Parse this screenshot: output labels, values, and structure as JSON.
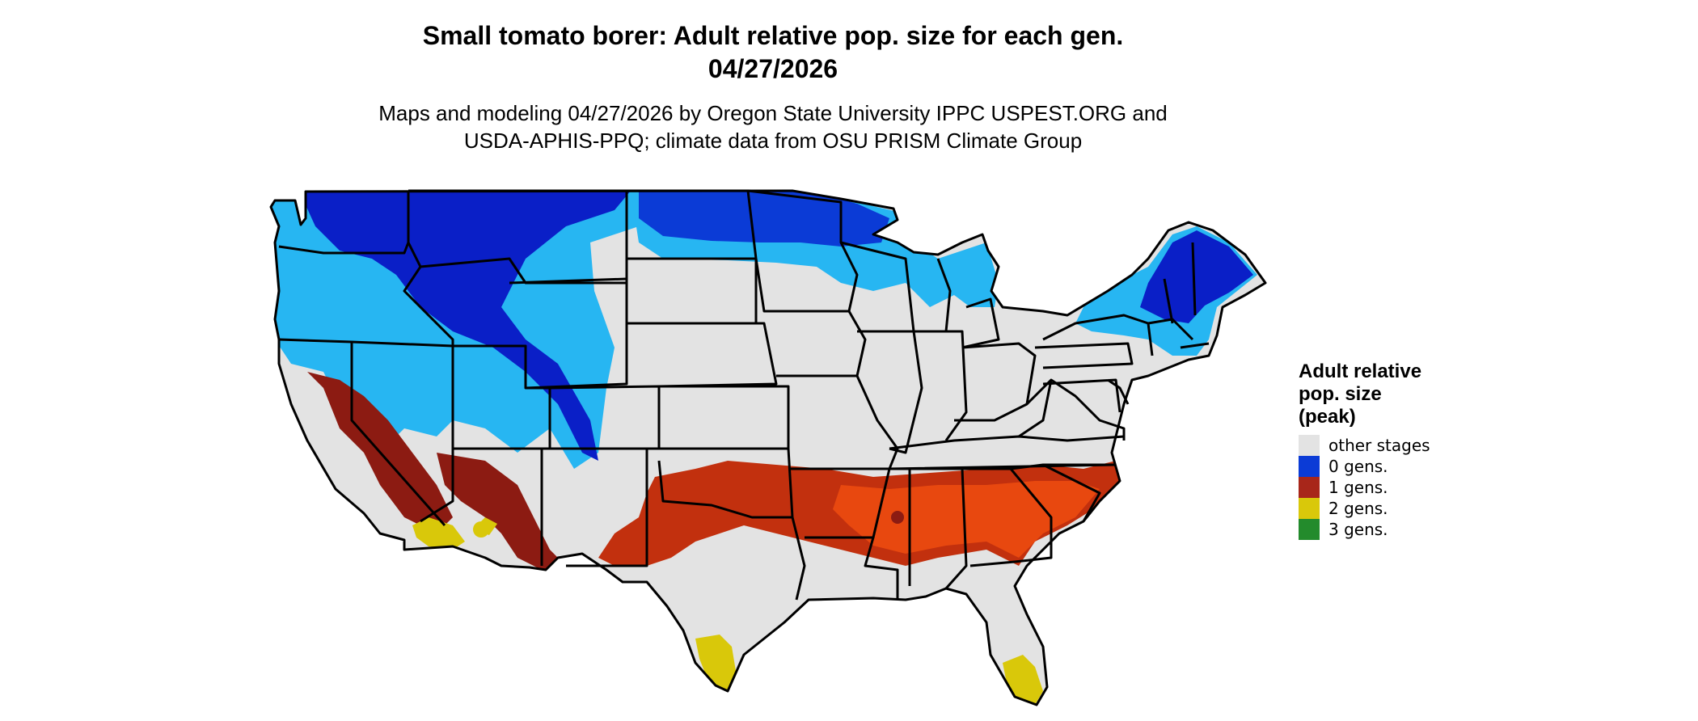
{
  "header": {
    "title_line1": "Small tomato borer: Adult relative pop. size for each gen.",
    "title_line2": "04/27/2026",
    "subtitle_line1": "Maps and modeling 04/27/2026 by Oregon State University IPPC USPEST.ORG and",
    "subtitle_line2": "USDA-APHIS-PPQ; climate data from OSU PRISM Climate Group"
  },
  "legend": {
    "title_line1": "Adult relative",
    "title_line2": "pop. size",
    "title_line3": "(peak)",
    "items": [
      {
        "label": "other stages",
        "color": "#e3e3e3"
      },
      {
        "label": "0 gens.",
        "color": "#0b3bd6"
      },
      {
        "label": "1 gens.",
        "color": "#a8261a"
      },
      {
        "label": "2 gens.",
        "color": "#d9c80a"
      },
      {
        "label": "3 gens.",
        "color": "#238b2c"
      }
    ]
  },
  "map": {
    "background_color": "#e3e3e3",
    "border_color": "#000000",
    "zone_colors": {
      "light_blue": "#27b6f2",
      "deep_blue": "#0a1fc7",
      "mid_blue": "#0b3bd6",
      "dark_red": "#8c1b12",
      "red": "#c2300e",
      "orange_red": "#e8480f",
      "yellow": "#d9c80a"
    }
  }
}
